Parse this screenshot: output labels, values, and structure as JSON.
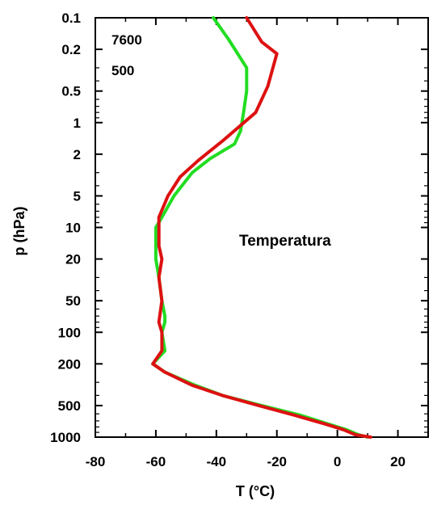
{
  "chart_data": {
    "type": "line",
    "xlabel": "T (°C)",
    "ylabel": "p (hPa)",
    "xlim": [
      -80,
      30
    ],
    "ylim": [
      0.1,
      1000
    ],
    "y_scale": "log",
    "y_inverted": true,
    "x_ticks": [
      -80,
      -60,
      -40,
      -20,
      0,
      20
    ],
    "y_ticks": [
      "0.1",
      "0.2",
      "0.5",
      "1",
      "2",
      "5",
      "10",
      "20",
      "50",
      "100",
      "200",
      "500",
      "1000"
    ],
    "grid": false,
    "annotations": [
      "7600",
      "500",
      "Temperatura"
    ],
    "series": [
      {
        "color": "#22dd22",
        "points": [
          [
            -41,
            0.1
          ],
          [
            -36,
            0.16
          ],
          [
            -30,
            0.3
          ],
          [
            -30,
            0.5
          ],
          [
            -31,
            0.8
          ],
          [
            -32,
            1.2
          ],
          [
            -34,
            1.6
          ],
          [
            -42,
            2.2
          ],
          [
            -48,
            3
          ],
          [
            -54,
            5
          ],
          [
            -58,
            8
          ],
          [
            -60,
            10
          ],
          [
            -60,
            15
          ],
          [
            -60,
            20
          ],
          [
            -59,
            30
          ],
          [
            -58,
            50
          ],
          [
            -57,
            70
          ],
          [
            -57,
            80
          ],
          [
            -58,
            100
          ],
          [
            -57,
            150
          ],
          [
            -61,
            200
          ],
          [
            -57,
            240
          ],
          [
            -47,
            320
          ],
          [
            -38,
            400
          ],
          [
            -25,
            500
          ],
          [
            -12,
            620
          ],
          [
            -3,
            750
          ],
          [
            3,
            850
          ],
          [
            7,
            950
          ],
          [
            10,
            1000
          ]
        ]
      },
      {
        "color": "#dd1111",
        "points": [
          [
            -30,
            0.1
          ],
          [
            -25,
            0.17
          ],
          [
            -20,
            0.22
          ],
          [
            -23,
            0.45
          ],
          [
            -27,
            0.8
          ],
          [
            -38,
            1.5
          ],
          [
            -46,
            2.3
          ],
          [
            -52,
            3.3
          ],
          [
            -56,
            5
          ],
          [
            -59,
            8
          ],
          [
            -59,
            10
          ],
          [
            -59,
            15
          ],
          [
            -58,
            20
          ],
          [
            -59,
            30
          ],
          [
            -58,
            50
          ],
          [
            -59,
            80
          ],
          [
            -58,
            100
          ],
          [
            -58,
            150
          ],
          [
            -61,
            200
          ],
          [
            -57,
            240
          ],
          [
            -48,
            320
          ],
          [
            -38,
            400
          ],
          [
            -26,
            500
          ],
          [
            -14,
            620
          ],
          [
            -4,
            750
          ],
          [
            2,
            850
          ],
          [
            6,
            950
          ],
          [
            11,
            1000
          ]
        ]
      }
    ]
  }
}
